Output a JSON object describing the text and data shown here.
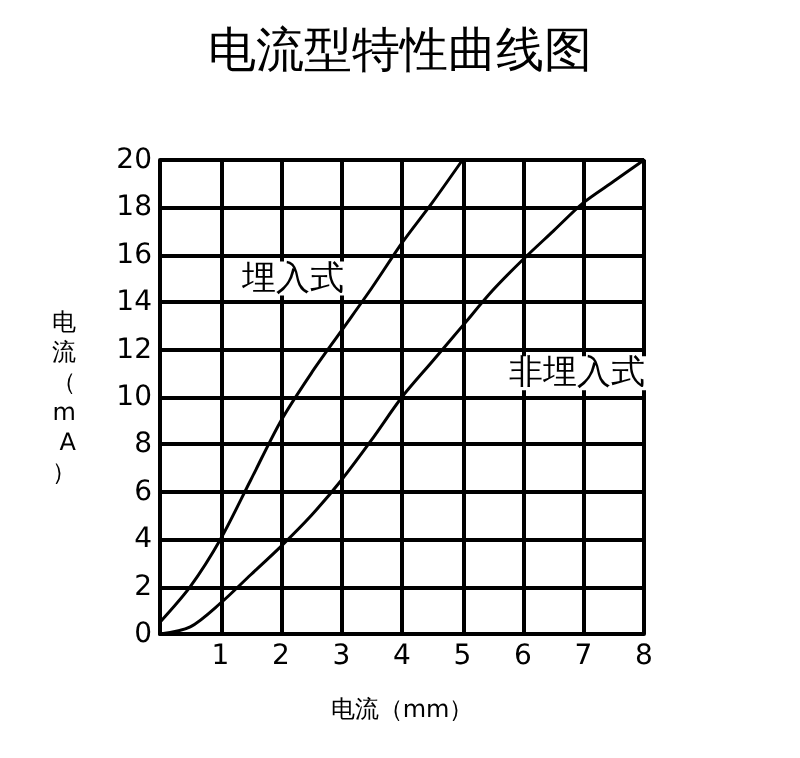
{
  "chart_data": {
    "type": "line",
    "title": "电流型特性曲线图",
    "xlabel": "电流（mm）",
    "ylabel": "电流（mA）",
    "xlim": [
      0,
      8
    ],
    "xticks": [
      {
        "value": 0,
        "label": null
      },
      1,
      2,
      3,
      4,
      5,
      6,
      7,
      8
    ],
    "ylim": [
      0,
      20
    ],
    "yticks": [
      0,
      2,
      4,
      6,
      8,
      10,
      12,
      14,
      16,
      18,
      20
    ],
    "grid": true,
    "marker": "none",
    "line_style": "solid",
    "series": [
      {
        "name": "埋入式",
        "color": "#000000",
        "x": [
          0,
          0.5,
          1,
          1.5,
          2,
          2.5,
          3,
          3.5,
          4,
          4.5,
          5
        ],
        "values": [
          0.5,
          2,
          4,
          6.5,
          9,
          11,
          12.8,
          14.6,
          16.5,
          18.2,
          20
        ]
      },
      {
        "name": "非埋入式",
        "color": "#000000",
        "x": [
          0,
          0.5,
          1,
          1.5,
          2,
          2.5,
          3,
          3.5,
          4,
          4.5,
          5,
          5.5,
          6,
          6.5,
          7,
          7.5,
          8
        ],
        "values": [
          0,
          0.3,
          1.3,
          2.5,
          3.7,
          5,
          6.5,
          8.2,
          10,
          11.5,
          13,
          14.5,
          15.8,
          17,
          18.2,
          19.1,
          20
        ]
      }
    ]
  }
}
